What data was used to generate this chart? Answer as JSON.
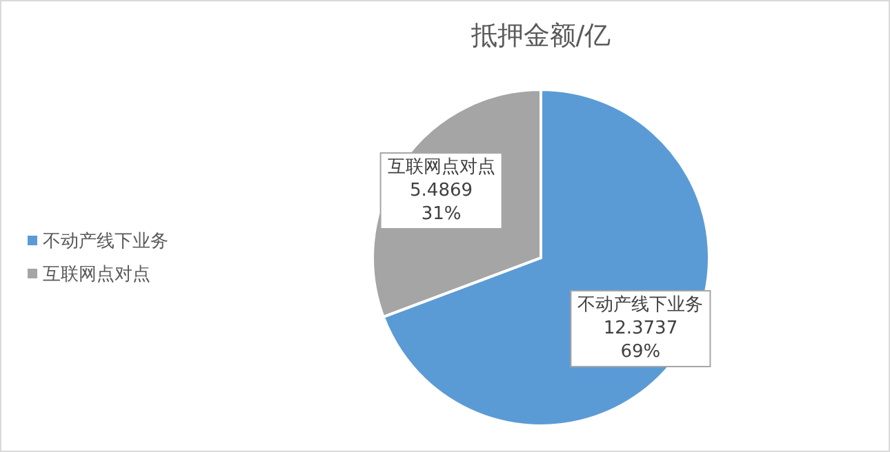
{
  "chart_data": {
    "type": "pie",
    "title": "抵押金额/亿",
    "categories": [
      "不动产线下业务",
      "互联网点对点"
    ],
    "values": [
      12.3737,
      5.4869
    ],
    "colors": [
      "#5b9bd5",
      "#a5a5a5"
    ],
    "value_labels": [
      "12.3737\n69%",
      "5.4869\n31%"
    ],
    "legend": "left"
  }
}
